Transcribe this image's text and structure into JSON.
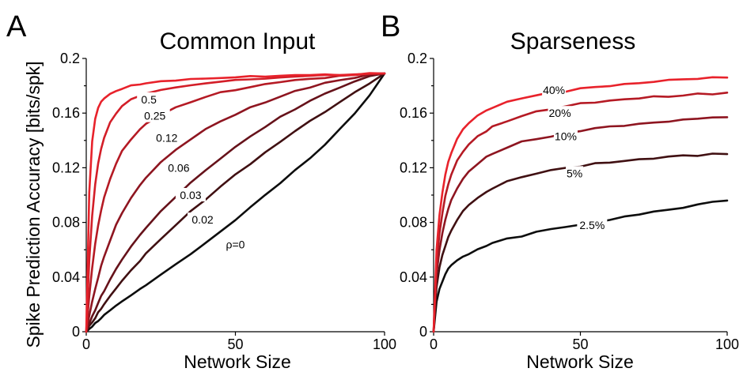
{
  "figure": {
    "shared_ylabel": "Spike Prediction Accuracy [bits/spk]",
    "colors": {
      "c0": "#e8222b",
      "c1": "#d31e28",
      "c2": "#b51a24",
      "c3": "#8e1520",
      "c4": "#66121a",
      "c5": "#401012",
      "c6": "#0d0d0d"
    }
  },
  "chart_data": [
    {
      "type": "line",
      "panel_letter": "A",
      "title": "Common Input",
      "xlabel": "Network Size",
      "ylabel": "Spike Prediction Accuracy [bits/spk]",
      "xlim": [
        0,
        100
      ],
      "ylim": [
        0,
        0.2
      ],
      "x_ticks": [
        0,
        50,
        100
      ],
      "x_tick_labels": [
        "0",
        "50",
        "100"
      ],
      "y_ticks": [
        0,
        0.04,
        0.08,
        0.12,
        0.16,
        0.2
      ],
      "y_tick_labels": [
        "0",
        "0.04",
        "0.08",
        "0.12",
        "0.16",
        "0.2"
      ],
      "grid": false,
      "x": [
        0,
        1,
        2,
        3,
        4,
        5,
        6,
        8,
        10,
        12,
        15,
        18,
        20,
        25,
        30,
        35,
        40,
        45,
        50,
        55,
        60,
        65,
        70,
        75,
        80,
        85,
        90,
        95,
        100
      ],
      "series": [
        {
          "name": "0.5",
          "color": "#e8222b",
          "label_x": 21,
          "label_y": 0.17,
          "values": [
            0,
            0.102,
            0.139,
            0.156,
            0.164,
            0.168,
            0.171,
            0.174,
            0.176,
            0.178,
            0.18,
            0.181,
            0.182,
            0.183,
            0.184,
            0.185,
            0.185,
            0.186,
            0.186,
            0.187,
            0.187,
            0.187,
            0.188,
            0.188,
            0.188,
            0.188,
            0.188,
            0.189,
            0.189
          ]
        },
        {
          "name": "0.25",
          "color": "#d31e28",
          "label_x": 23,
          "label_y": 0.158,
          "values": [
            0,
            0.052,
            0.085,
            0.108,
            0.123,
            0.134,
            0.142,
            0.153,
            0.16,
            0.165,
            0.17,
            0.173,
            0.174,
            0.177,
            0.179,
            0.18,
            0.182,
            0.183,
            0.184,
            0.185,
            0.185,
            0.186,
            0.187,
            0.187,
            0.188,
            0.188,
            0.188,
            0.189,
            0.189
          ]
        },
        {
          "name": "0.12",
          "color": "#b51a24",
          "label_x": 27,
          "label_y": 0.142,
          "values": [
            0,
            0.026,
            0.047,
            0.064,
            0.078,
            0.089,
            0.098,
            0.112,
            0.123,
            0.132,
            0.141,
            0.148,
            0.152,
            0.159,
            0.164,
            0.168,
            0.172,
            0.175,
            0.177,
            0.179,
            0.181,
            0.183,
            0.184,
            0.185,
            0.186,
            0.187,
            0.188,
            0.189,
            0.189
          ]
        },
        {
          "name": "0.06",
          "color": "#8e1520",
          "label_x": 31,
          "label_y": 0.12,
          "values": [
            0,
            0.012,
            0.022,
            0.031,
            0.04,
            0.048,
            0.055,
            0.067,
            0.078,
            0.087,
            0.098,
            0.107,
            0.113,
            0.124,
            0.133,
            0.141,
            0.148,
            0.154,
            0.159,
            0.164,
            0.168,
            0.172,
            0.176,
            0.179,
            0.182,
            0.184,
            0.186,
            0.188,
            0.189
          ]
        },
        {
          "name": "0.03",
          "color": "#66121a",
          "label_x": 35,
          "label_y": 0.1,
          "values": [
            0,
            0.006,
            0.011,
            0.016,
            0.021,
            0.026,
            0.03,
            0.038,
            0.046,
            0.053,
            0.062,
            0.071,
            0.076,
            0.088,
            0.099,
            0.109,
            0.118,
            0.127,
            0.135,
            0.143,
            0.15,
            0.157,
            0.163,
            0.169,
            0.174,
            0.179,
            0.183,
            0.187,
            0.189
          ]
        },
        {
          "name": "0.02",
          "color": "#401012",
          "label_x": 39,
          "label_y": 0.082,
          "values": [
            0,
            0.004,
            0.007,
            0.01,
            0.014,
            0.017,
            0.02,
            0.026,
            0.032,
            0.037,
            0.045,
            0.052,
            0.057,
            0.068,
            0.078,
            0.088,
            0.097,
            0.106,
            0.115,
            0.123,
            0.131,
            0.139,
            0.147,
            0.154,
            0.161,
            0.168,
            0.175,
            0.182,
            0.189
          ]
        },
        {
          "name": "ρ=0",
          "color": "#0d0d0d",
          "label_x": 50,
          "label_y": 0.064,
          "values": [
            0,
            0.002,
            0.004,
            0.006,
            0.008,
            0.01,
            0.012,
            0.016,
            0.019,
            0.022,
            0.027,
            0.031,
            0.034,
            0.042,
            0.049,
            0.057,
            0.065,
            0.073,
            0.082,
            0.091,
            0.1,
            0.109,
            0.118,
            0.127,
            0.137,
            0.148,
            0.16,
            0.173,
            0.189
          ]
        }
      ]
    },
    {
      "type": "line",
      "panel_letter": "B",
      "title": "Sparseness",
      "xlabel": "Network Size",
      "ylabel": "",
      "xlim": [
        0,
        100
      ],
      "ylim": [
        0,
        0.2
      ],
      "x_ticks": [
        0,
        50,
        100
      ],
      "x_tick_labels": [
        "0",
        "50",
        "100"
      ],
      "y_ticks": [
        0,
        0.04,
        0.08,
        0.12,
        0.16,
        0.2
      ],
      "y_tick_labels": [
        "0",
        "0.04",
        "0.08",
        "0.12",
        "0.16",
        "0.2"
      ],
      "grid": false,
      "x": [
        0,
        1,
        2,
        3,
        4,
        5,
        6,
        8,
        10,
        12,
        15,
        18,
        20,
        25,
        30,
        35,
        40,
        45,
        50,
        55,
        60,
        65,
        70,
        75,
        80,
        85,
        90,
        95,
        100
      ],
      "series": [
        {
          "name": "40%",
          "color": "#e8222b",
          "label_x": 41,
          "label_y": 0.177,
          "values": [
            0,
            0.06,
            0.085,
            0.102,
            0.115,
            0.124,
            0.131,
            0.141,
            0.148,
            0.153,
            0.158,
            0.162,
            0.164,
            0.168,
            0.171,
            0.173,
            0.175,
            0.176,
            0.178,
            0.179,
            0.18,
            0.181,
            0.182,
            0.183,
            0.184,
            0.185,
            0.185,
            0.186,
            0.186
          ]
        },
        {
          "name": "20%",
          "color": "#b51a24",
          "label_x": 43,
          "label_y": 0.16,
          "values": [
            0,
            0.05,
            0.072,
            0.087,
            0.099,
            0.108,
            0.115,
            0.125,
            0.132,
            0.137,
            0.143,
            0.147,
            0.15,
            0.154,
            0.158,
            0.161,
            0.163,
            0.165,
            0.167,
            0.168,
            0.169,
            0.17,
            0.171,
            0.172,
            0.172,
            0.173,
            0.174,
            0.174,
            0.175
          ]
        },
        {
          "name": "10%",
          "color": "#8e1520",
          "label_x": 45,
          "label_y": 0.143,
          "values": [
            0,
            0.042,
            0.06,
            0.072,
            0.082,
            0.09,
            0.096,
            0.105,
            0.112,
            0.117,
            0.123,
            0.128,
            0.13,
            0.135,
            0.139,
            0.141,
            0.143,
            0.145,
            0.147,
            0.149,
            0.15,
            0.151,
            0.152,
            0.153,
            0.154,
            0.155,
            0.156,
            0.157,
            0.157
          ]
        },
        {
          "name": "5%",
          "color": "#401012",
          "label_x": 48,
          "label_y": 0.116,
          "values": [
            0,
            0.033,
            0.047,
            0.056,
            0.063,
            0.069,
            0.074,
            0.082,
            0.088,
            0.093,
            0.098,
            0.102,
            0.105,
            0.11,
            0.113,
            0.116,
            0.118,
            0.12,
            0.121,
            0.123,
            0.124,
            0.125,
            0.126,
            0.127,
            0.128,
            0.129,
            0.129,
            0.13,
            0.13
          ]
        },
        {
          "name": "2.5%",
          "color": "#0d0d0d",
          "label_x": 54,
          "label_y": 0.078,
          "values": [
            0,
            0.022,
            0.031,
            0.037,
            0.042,
            0.046,
            0.049,
            0.052,
            0.055,
            0.057,
            0.06,
            0.063,
            0.065,
            0.068,
            0.07,
            0.073,
            0.075,
            0.077,
            0.078,
            0.08,
            0.082,
            0.084,
            0.086,
            0.088,
            0.089,
            0.091,
            0.093,
            0.095,
            0.096
          ]
        }
      ]
    }
  ]
}
